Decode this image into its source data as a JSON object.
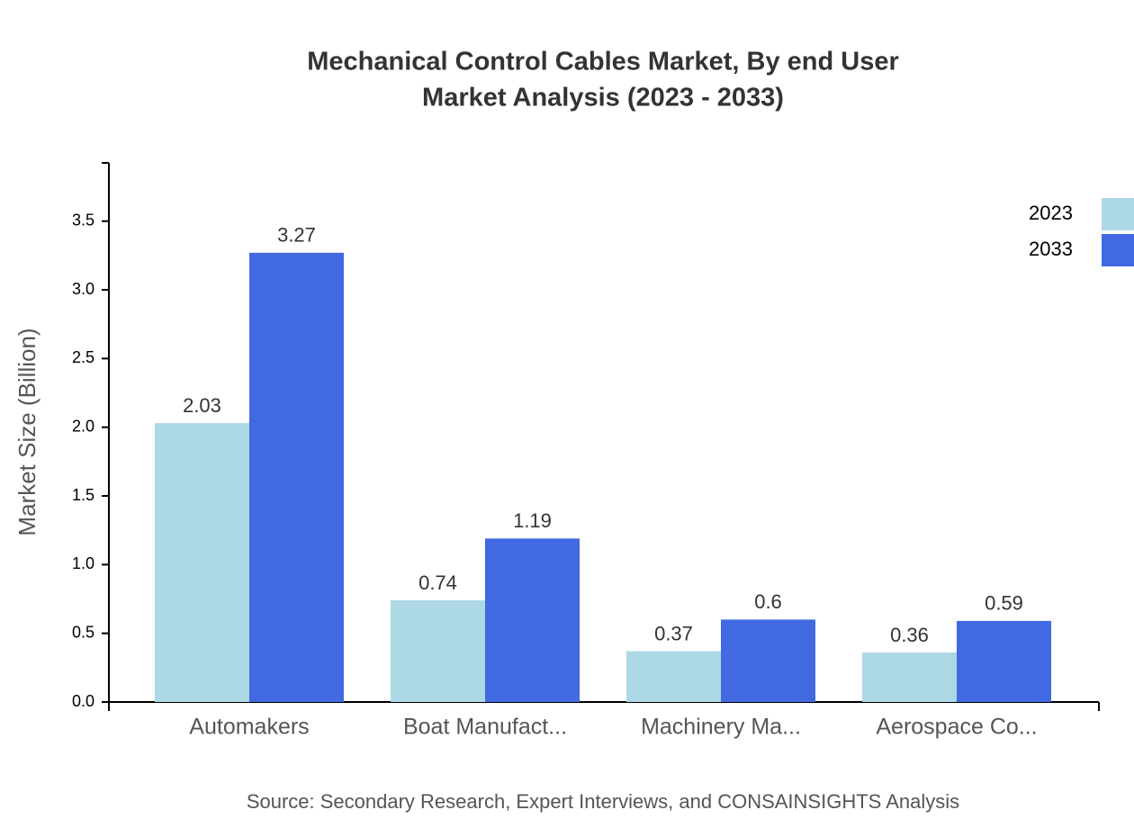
{
  "chart_data": {
    "type": "bar",
    "title": "Mechanical Control Cables Market, By end User",
    "subtitle": "Market Analysis (2023 - 2033)",
    "y_label": "Market Size (Billion)",
    "source": "Source: Secondary Research, Expert Interviews, and CONSAINSIGHTS Analysis",
    "categories": [
      "Automakers",
      "Boat Manufact...",
      "Machinery Ma...",
      "Aerospace Co..."
    ],
    "series": [
      {
        "name": "2023",
        "color": "#add8e6",
        "values": [
          2.03,
          0.74,
          0.37,
          0.36
        ]
      },
      {
        "name": "2033",
        "color": "#4169e1",
        "values": [
          3.27,
          1.19,
          0.6,
          0.59
        ]
      }
    ],
    "ylim": [
      0,
      3.924
    ],
    "yticks": [
      {
        "value": 0,
        "label": "0.0"
      },
      0.5,
      {
        "value": 1,
        "label": "1.0"
      },
      1.5,
      {
        "value": 2,
        "label": "2.0"
      },
      2.5,
      {
        "value": 3,
        "label": "3.0"
      },
      3.5
    ],
    "grid": false,
    "legend": "top-right"
  }
}
